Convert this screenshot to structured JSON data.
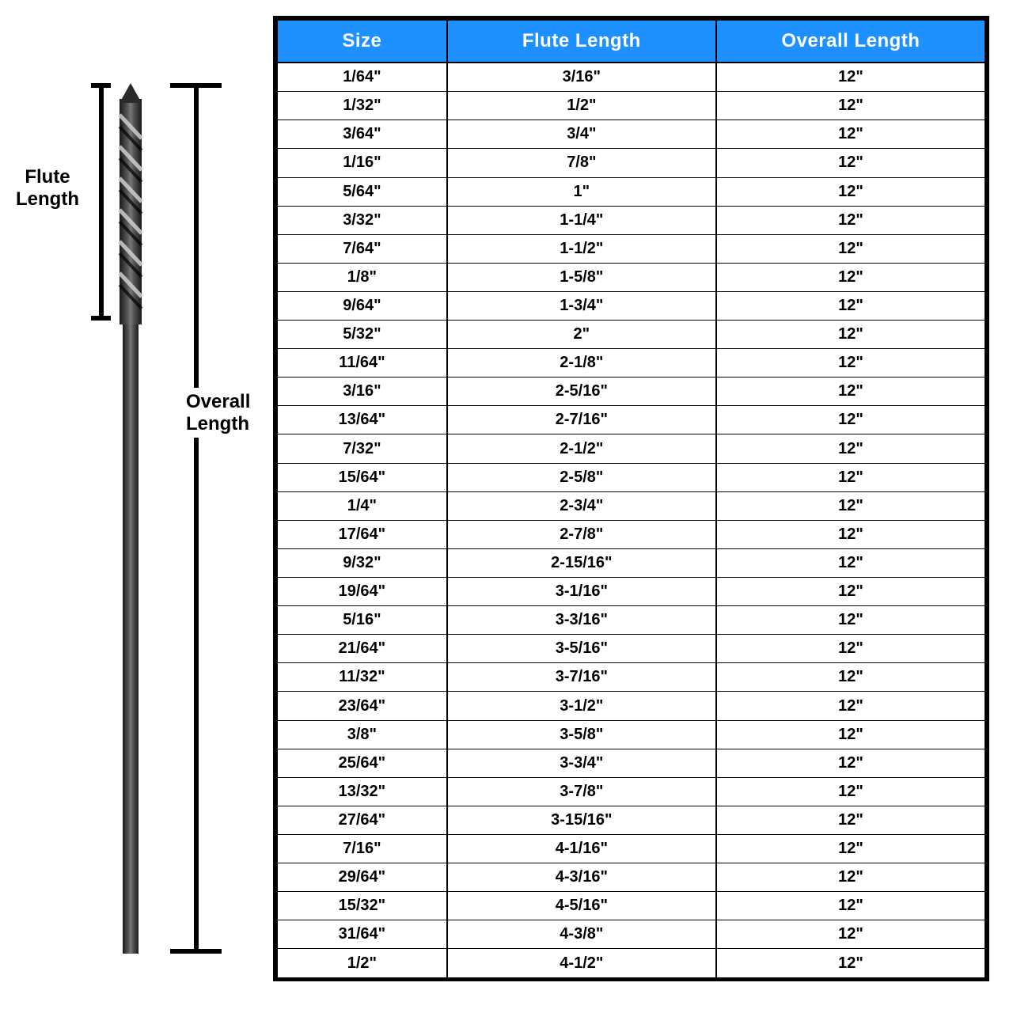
{
  "diagram": {
    "flute_label_line1": "Flute",
    "flute_label_line2": "Length",
    "overall_label_line1": "Overall",
    "overall_label_line2": "Length",
    "drill_color": "#2b2b2b",
    "drill_highlight": "#6a6a6a"
  },
  "table": {
    "header_bg": "#1e90ff",
    "header_fg": "#ffffff",
    "border_color": "#000000",
    "columns": [
      "Size",
      "Flute Length",
      "Overall Length"
    ],
    "rows": [
      [
        "1/64\"",
        "3/16\"",
        "12\""
      ],
      [
        "1/32\"",
        "1/2\"",
        "12\""
      ],
      [
        "3/64\"",
        "3/4\"",
        "12\""
      ],
      [
        "1/16\"",
        "7/8\"",
        "12\""
      ],
      [
        "5/64\"",
        "1\"",
        "12\""
      ],
      [
        "3/32\"",
        "1-1/4\"",
        "12\""
      ],
      [
        "7/64\"",
        "1-1/2\"",
        "12\""
      ],
      [
        "1/8\"",
        "1-5/8\"",
        "12\""
      ],
      [
        "9/64\"",
        "1-3/4\"",
        "12\""
      ],
      [
        "5/32\"",
        "2\"",
        "12\""
      ],
      [
        "11/64\"",
        "2-1/8\"",
        "12\""
      ],
      [
        "3/16\"",
        "2-5/16\"",
        "12\""
      ],
      [
        "13/64\"",
        "2-7/16\"",
        "12\""
      ],
      [
        "7/32\"",
        "2-1/2\"",
        "12\""
      ],
      [
        "15/64\"",
        "2-5/8\"",
        "12\""
      ],
      [
        "1/4\"",
        "2-3/4\"",
        "12\""
      ],
      [
        "17/64\"",
        "2-7/8\"",
        "12\""
      ],
      [
        "9/32\"",
        "2-15/16\"",
        "12\""
      ],
      [
        "19/64\"",
        "3-1/16\"",
        "12\""
      ],
      [
        "5/16\"",
        "3-3/16\"",
        "12\""
      ],
      [
        "21/64\"",
        "3-5/16\"",
        "12\""
      ],
      [
        "11/32\"",
        "3-7/16\"",
        "12\""
      ],
      [
        "23/64\"",
        "3-1/2\"",
        "12\""
      ],
      [
        "3/8\"",
        "3-5/8\"",
        "12\""
      ],
      [
        "25/64\"",
        "3-3/4\"",
        "12\""
      ],
      [
        "13/32\"",
        "3-7/8\"",
        "12\""
      ],
      [
        "27/64\"",
        "3-15/16\"",
        "12\""
      ],
      [
        "7/16\"",
        "4-1/16\"",
        "12\""
      ],
      [
        "29/64\"",
        "4-3/16\"",
        "12\""
      ],
      [
        "15/32\"",
        "4-5/16\"",
        "12\""
      ],
      [
        "31/64\"",
        "4-3/8\"",
        "12\""
      ],
      [
        "1/2\"",
        "4-1/2\"",
        "12\""
      ]
    ]
  }
}
